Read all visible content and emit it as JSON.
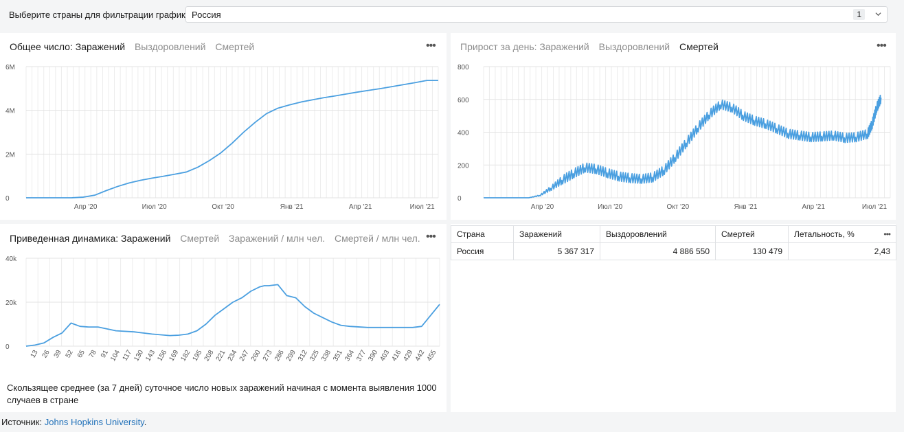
{
  "filter": {
    "label": "Выберите страны для фильтрации графиков:",
    "value": "Россия",
    "count": "1"
  },
  "totals_card": {
    "tabs": [
      {
        "label": "Общее число: Заражений",
        "active": true
      },
      {
        "label": "Выздоровлений",
        "active": false
      },
      {
        "label": "Смертей",
        "active": false
      }
    ]
  },
  "daily_card": {
    "tabs": [
      {
        "label": "Прирост за день: Заражений",
        "active": false
      },
      {
        "label": "Выздоровлений",
        "active": false
      },
      {
        "label": "Смертей",
        "active": true
      }
    ]
  },
  "dynamics_card": {
    "tabs": [
      {
        "label": "Приведенная динамика: Заражений",
        "active": true
      },
      {
        "label": "Смертей",
        "active": false
      },
      {
        "label": "Заражений / млн чел.",
        "active": false
      },
      {
        "label": "Смертей / млн чел.",
        "active": false
      }
    ],
    "caption": "Скользящее среднее (за 7 дней) суточное число новых заражений начиная с момента выявления 1000 случаев в стране"
  },
  "table": {
    "headers": [
      "Страна",
      "Заражений",
      "Выздоровлений",
      "Смертей",
      "Летальность, %"
    ],
    "rows": [
      {
        "country": "Россия",
        "cases": "5 367 317",
        "recovered": "4 886 550",
        "deaths": "130 479",
        "lethality": "2,43"
      }
    ]
  },
  "source": {
    "label": "Источник:",
    "link": "Johns Hopkins University",
    "end": "."
  },
  "chart_data": [
    {
      "type": "line",
      "title": "Общее число: Заражений",
      "y_ticks": [
        "0",
        "2M",
        "4M",
        "6M"
      ],
      "ylim": [
        0,
        6000000
      ],
      "x_ticks": [
        "Апр '20",
        "Июл '20",
        "Окт '20",
        "Янв '21",
        "Апр '21",
        "Июл '21"
      ],
      "x_months": [
        0,
        0.5,
        1,
        1.5,
        2,
        2.5,
        3,
        3.5,
        4,
        4.5,
        5,
        5.5,
        6,
        6.5,
        7,
        7.5,
        8,
        8.5,
        9,
        9.5,
        10,
        10.5,
        11,
        11.5,
        12,
        12.5,
        13,
        13.5,
        14,
        14.5,
        15,
        15.5,
        16,
        16.5,
        17,
        17.5,
        18
      ],
      "values": [
        0,
        0,
        0,
        100,
        2000,
        30000,
        120000,
        330000,
        520000,
        680000,
        800000,
        900000,
        985000,
        1080000,
        1180000,
        1400000,
        1700000,
        2050000,
        2500000,
        3000000,
        3450000,
        3850000,
        4100000,
        4250000,
        4380000,
        4480000,
        4580000,
        4660000,
        4750000,
        4840000,
        4920000,
        5000000,
        5090000,
        5180000,
        5270000,
        5367317,
        5367317
      ]
    },
    {
      "type": "line",
      "title": "Прирост за день: Смертей",
      "y_ticks": [
        "0",
        "200",
        "400",
        "600",
        "800"
      ],
      "ylim": [
        0,
        800
      ],
      "x_ticks": [
        "Апр '20",
        "Июл '20",
        "Окт '20",
        "Янв '21",
        "Апр '21",
        "Июл '21"
      ],
      "x_months": [
        0,
        1,
        2,
        2.5,
        3,
        3.5,
        4,
        4.5,
        5,
        5.5,
        6,
        6.5,
        7,
        7.5,
        8,
        8.5,
        9,
        9.5,
        10,
        10.5,
        11,
        11.5,
        12,
        12.5,
        13,
        13.5,
        14,
        14.5,
        15,
        15.5,
        16,
        16.5,
        17,
        17.2,
        17.4,
        17.6
      ],
      "values": [
        0,
        0,
        0,
        15,
        60,
        110,
        150,
        185,
        175,
        150,
        130,
        120,
        115,
        125,
        170,
        250,
        340,
        430,
        510,
        570,
        550,
        500,
        470,
        450,
        420,
        390,
        380,
        370,
        375,
        380,
        365,
        370,
        390,
        450,
        550,
        610
      ]
    },
    {
      "type": "line",
      "title": "Приведенная динамика: Заражений",
      "y_ticks": [
        "0",
        "20k",
        "40k"
      ],
      "ylim": [
        0,
        40000
      ],
      "x_ticks": [
        "13",
        "26",
        "39",
        "52",
        "65",
        "78",
        "91",
        "104",
        "117",
        "130",
        "143",
        "156",
        "169",
        "182",
        "195",
        "208",
        "221",
        "234",
        "247",
        "260",
        "273",
        "286",
        "299",
        "312",
        "325",
        "338",
        "351",
        "364",
        "377",
        "390",
        "403",
        "416",
        "429",
        "442",
        "455"
      ],
      "x_days": [
        0,
        10,
        20,
        30,
        40,
        50,
        60,
        70,
        80,
        100,
        120,
        140,
        160,
        170,
        180,
        190,
        200,
        210,
        220,
        230,
        240,
        250,
        260,
        265,
        270,
        280,
        290,
        300,
        310,
        320,
        330,
        340,
        350,
        360,
        380,
        400,
        420,
        430,
        440,
        450,
        460
      ],
      "values": [
        0,
        500,
        1500,
        4000,
        6000,
        10500,
        9000,
        8700,
        8700,
        7000,
        6500,
        5500,
        4800,
        5000,
        5500,
        7000,
        10000,
        14000,
        17000,
        20000,
        22000,
        25000,
        27000,
        27500,
        27500,
        28000,
        23000,
        22000,
        18000,
        15000,
        13000,
        11000,
        9500,
        9000,
        8500,
        8500,
        8500,
        8500,
        9000,
        14000,
        19000
      ]
    }
  ]
}
